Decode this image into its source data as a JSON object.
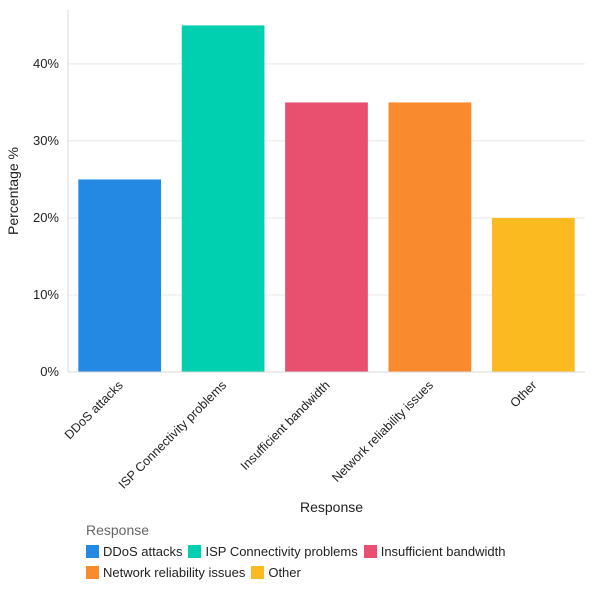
{
  "chart_data": {
    "type": "bar",
    "categories": [
      "DDoS attacks",
      "ISP Connectivity problems",
      "Insufficient bandwidth",
      "Network reliability issues",
      "Other"
    ],
    "values": [
      25,
      45,
      35,
      35,
      20
    ],
    "colors": [
      "#2389e3",
      "#00cfb0",
      "#e9506f",
      "#f98b2e",
      "#fcba21"
    ],
    "ylabel": "Percentage %",
    "xlabel": "Response",
    "ylim": [
      0,
      47
    ],
    "yticks": [
      0,
      10,
      20,
      30,
      40
    ],
    "ytick_labels": [
      "0%",
      "10%",
      "20%",
      "30%",
      "40%"
    ],
    "grid": true,
    "legend": {
      "title": "Response",
      "position": "bottom-left"
    }
  }
}
